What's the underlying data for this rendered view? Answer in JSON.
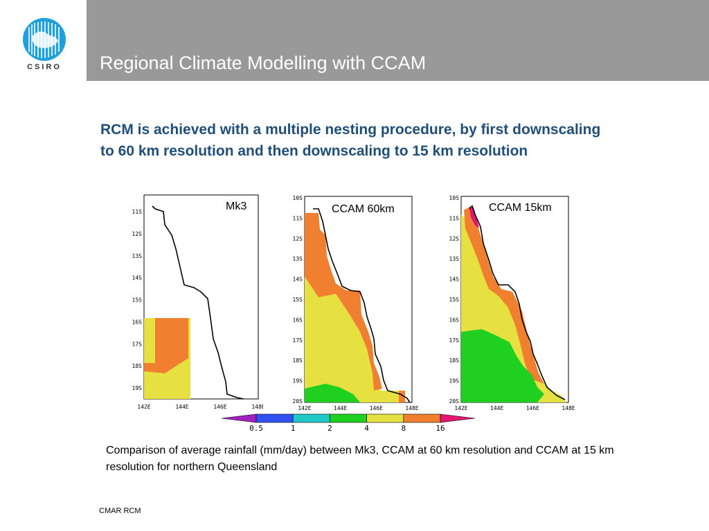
{
  "header": {
    "title": "Regional Climate Modelling with CCAM",
    "logo_text": "CSIRO",
    "logo_color": "#1ea0dc",
    "bar_color": "#999999"
  },
  "subtitle": "RCM is achieved with a multiple nesting procedure, by first downscaling to 60 km resolution and then downscaling to 15 km resolution",
  "panels": [
    {
      "label": "Mk3",
      "y_ticks": [
        "11S",
        "12S",
        "13S",
        "14S",
        "15S",
        "16S",
        "17S",
        "18S",
        "19S"
      ],
      "x_ticks": [
        "142E",
        "144E",
        "146E",
        "148E"
      ]
    },
    {
      "label": "CCAM 60km",
      "y_ticks": [
        "10S",
        "11S",
        "12S",
        "13S",
        "14S",
        "15S",
        "16S",
        "17S",
        "18S",
        "19S",
        "20S"
      ],
      "x_ticks": [
        "142E",
        "144E",
        "146E",
        "148E"
      ]
    },
    {
      "label": "CCAM 15km",
      "y_ticks": [
        "10S",
        "11S",
        "12S",
        "13S",
        "14S",
        "15S",
        "16S",
        "17S",
        "18S",
        "19S",
        "20S"
      ],
      "x_ticks": [
        "142E",
        "144E",
        "146E",
        "148E"
      ]
    }
  ],
  "colorbar": {
    "ticks": [
      "0.5",
      "1",
      "2",
      "4",
      "8",
      "16"
    ],
    "colors": [
      "#a020c0",
      "#3050f0",
      "#20c8c8",
      "#20d020",
      "#e6e040",
      "#f08030",
      "#e01870"
    ]
  },
  "caption": "Comparison of average rainfall (mm/day) between Mk3, CCAM at 60 km resolution and CCAM at 15 km resolution for northern Queensland",
  "footer": "CMAR RCM"
}
